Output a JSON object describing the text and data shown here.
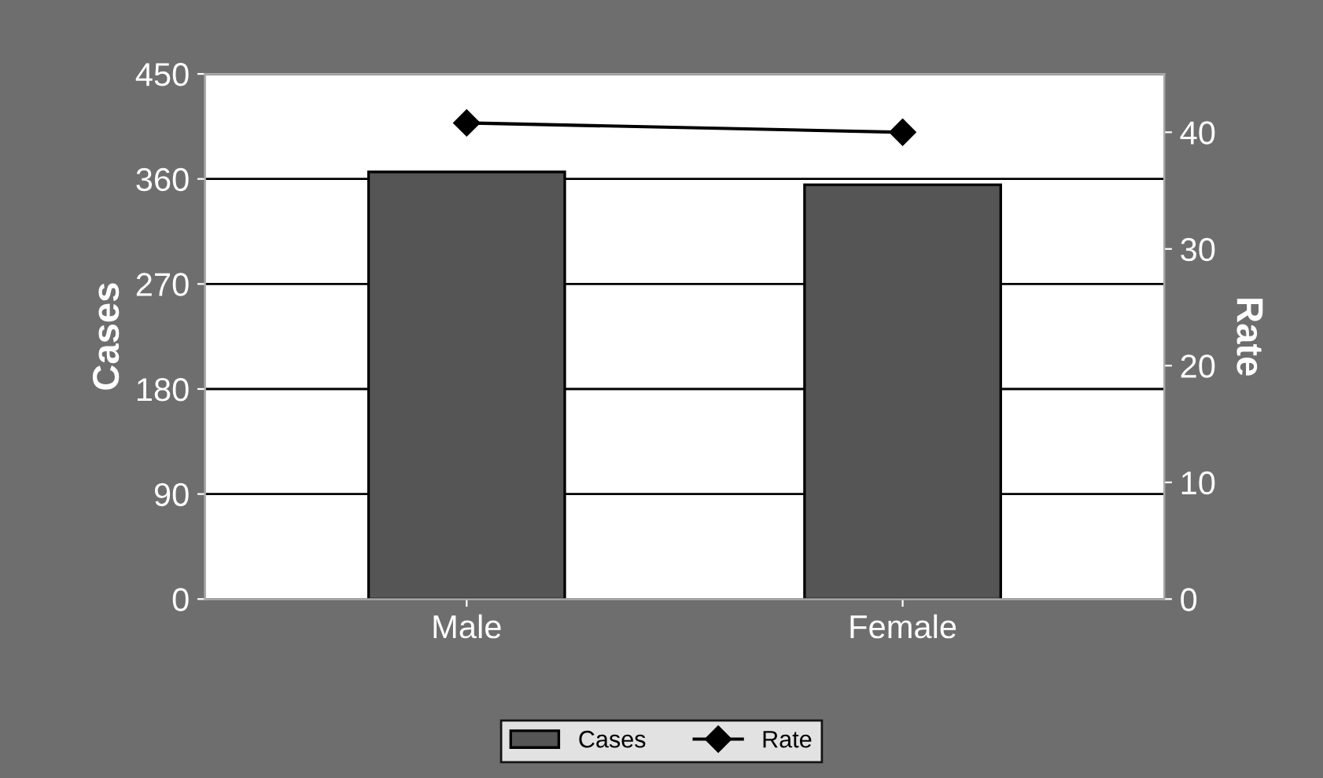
{
  "chart_data": {
    "type": "bar",
    "categories": [
      "Male",
      "Female"
    ],
    "series": [
      {
        "name": "Cases",
        "color": "#555555",
        "values": [
          366,
          355
        ]
      },
      {
        "name": "Rate",
        "type": "line",
        "axis": "y2",
        "color": "#000000",
        "marker": "diamond",
        "values": [
          40.8,
          40.0
        ]
      }
    ],
    "ylabel": "Cases",
    "y2label": "Rate",
    "ylim": [
      0,
      450
    ],
    "yticks": [
      0,
      90,
      180,
      270,
      360,
      450
    ],
    "y2lim": [
      0,
      45
    ],
    "y2ticks": [
      0,
      10,
      20,
      30,
      40
    ],
    "grid": "y",
    "legend": "bottom"
  }
}
